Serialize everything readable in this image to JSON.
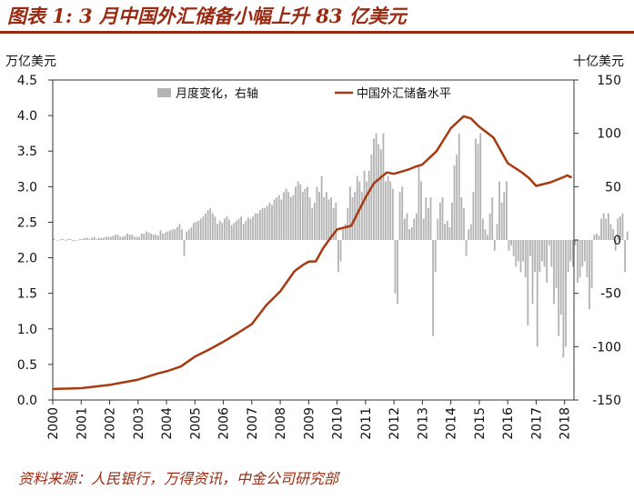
{
  "header": {
    "title": "图表 1: 3 月中国外汇储备小幅上升 83 亿美元"
  },
  "footer": {
    "source": "资料来源：人民银行，万得资讯，中金公司研究部"
  },
  "chart_data": {
    "type": "bar+line",
    "title": "",
    "left_axis": {
      "unit_label": "万亿美元",
      "ylim": [
        0,
        4.5
      ],
      "ticks": [
        "0.0",
        "0.5",
        "1.0",
        "1.5",
        "2.0",
        "2.5",
        "3.0",
        "3.5",
        "4.0",
        "4.5"
      ]
    },
    "right_axis": {
      "unit_label": "十亿美元",
      "ylim": [
        -150,
        150
      ],
      "ticks": [
        "-150",
        "-100",
        "-50",
        "0",
        "50",
        "100",
        "150"
      ]
    },
    "x_axis": {
      "range": [
        2000,
        2018.33
      ],
      "ticks": [
        "2000",
        "2001",
        "2002",
        "2003",
        "2004",
        "2005",
        "2006",
        "2007",
        "2008",
        "2009",
        "2010",
        "2011",
        "2012",
        "2013",
        "2014",
        "2015",
        "2016",
        "2017",
        "2018"
      ]
    },
    "legend": {
      "placement": "top",
      "bar_label": "月度变化，右轴",
      "line_label": "中国外汇储备水平"
    },
    "series": [
      {
        "name": "中国外汇储备水平",
        "axis": "left",
        "color": "#a83a12",
        "points": [
          [
            2000.0,
            0.155
          ],
          [
            2001.0,
            0.166
          ],
          [
            2002.0,
            0.212
          ],
          [
            2003.0,
            0.286
          ],
          [
            2003.75,
            0.38
          ],
          [
            2004.0,
            0.403
          ],
          [
            2004.5,
            0.47
          ],
          [
            2005.0,
            0.61
          ],
          [
            2005.5,
            0.71
          ],
          [
            2006.0,
            0.819
          ],
          [
            2006.5,
            0.94
          ],
          [
            2007.0,
            1.066
          ],
          [
            2007.5,
            1.33
          ],
          [
            2008.0,
            1.528
          ],
          [
            2008.5,
            1.81
          ],
          [
            2008.8,
            1.9
          ],
          [
            2009.0,
            1.946
          ],
          [
            2009.25,
            1.95
          ],
          [
            2009.5,
            2.13
          ],
          [
            2009.75,
            2.27
          ],
          [
            2010.0,
            2.399
          ],
          [
            2010.5,
            2.45
          ],
          [
            2010.75,
            2.65
          ],
          [
            2011.0,
            2.847
          ],
          [
            2011.3,
            3.05
          ],
          [
            2011.75,
            3.2
          ],
          [
            2012.0,
            3.181
          ],
          [
            2012.5,
            3.24
          ],
          [
            2012.75,
            3.28
          ],
          [
            2013.0,
            3.312
          ],
          [
            2013.5,
            3.5
          ],
          [
            2014.0,
            3.821
          ],
          [
            2014.45,
            3.99
          ],
          [
            2014.7,
            3.96
          ],
          [
            2015.0,
            3.843
          ],
          [
            2015.5,
            3.69
          ],
          [
            2015.75,
            3.51
          ],
          [
            2016.0,
            3.33
          ],
          [
            2016.5,
            3.2
          ],
          [
            2016.75,
            3.12
          ],
          [
            2017.0,
            3.011
          ],
          [
            2017.5,
            3.06
          ],
          [
            2018.0,
            3.14
          ],
          [
            2018.1,
            3.16
          ],
          [
            2018.2,
            3.134
          ],
          [
            2018.25,
            3.143
          ]
        ]
      },
      {
        "name": "月度变化，右轴",
        "axis": "right",
        "color": "#b3b3b3",
        "values_monthly": [
          1,
          0,
          0,
          1,
          1,
          -1,
          1,
          1,
          -1,
          0,
          0,
          1,
          1,
          2,
          2,
          1,
          2,
          3,
          1,
          2,
          2,
          2,
          3,
          3,
          3,
          4,
          5,
          5,
          3,
          3,
          4,
          6,
          5,
          5,
          3,
          3,
          3,
          6,
          6,
          8,
          7,
          6,
          5,
          5,
          4,
          9,
          6,
          7,
          8,
          9,
          10,
          10,
          12,
          15,
          10,
          -15,
          8,
          10,
          12,
          16,
          17,
          18,
          20,
          22,
          25,
          28,
          30,
          25,
          22,
          15,
          18,
          16,
          20,
          22,
          19,
          14,
          16,
          18,
          20,
          22,
          15,
          18,
          21,
          20,
          22,
          25,
          25,
          28,
          30,
          30,
          32,
          35,
          33,
          38,
          40,
          42,
          38,
          45,
          48,
          45,
          40,
          42,
          50,
          55,
          52,
          45,
          48,
          50,
          40,
          30,
          35,
          50,
          45,
          60,
          40,
          45,
          38,
          40,
          30,
          35,
          -30,
          -20,
          10,
          15,
          30,
          50,
          40,
          45,
          60,
          55,
          45,
          65,
          55,
          65,
          80,
          95,
          100,
          90,
          85,
          100,
          55,
          60,
          55,
          48,
          -50,
          -60,
          45,
          50,
          20,
          25,
          10,
          12,
          20,
          25,
          70,
          55,
          20,
          40,
          30,
          40,
          -90,
          -30,
          20,
          35,
          40,
          15,
          18,
          12,
          35,
          70,
          80,
          100,
          40,
          30,
          -15,
          10,
          15,
          45,
          95,
          90,
          100,
          20,
          10,
          5,
          25,
          40,
          -10,
          15,
          55,
          35,
          45,
          55,
          -10,
          -5,
          -15,
          -25,
          -20,
          -30,
          -20,
          -35,
          -80,
          -15,
          -60,
          -30,
          -100,
          -30,
          -20,
          -25,
          -40,
          -5,
          -25,
          -60,
          -45,
          -90,
          -70,
          -110,
          -100,
          -30,
          -20,
          -25,
          -5,
          -40,
          -35,
          -25,
          -20,
          -35,
          -65,
          -45,
          5,
          6,
          4,
          20,
          25,
          20,
          25,
          15,
          10,
          -10,
          20,
          22,
          25,
          -30,
          8
        ]
      }
    ]
  }
}
